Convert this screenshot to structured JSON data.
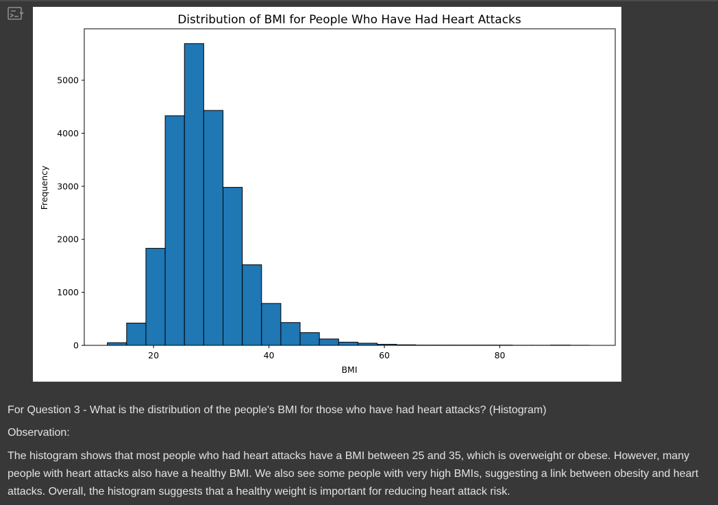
{
  "output_icon": "output-toggle-icon",
  "colors": {
    "background": "#383838",
    "bar_fill": "#1f77b4",
    "bar_edge": "#000000",
    "text": "#e3e3e3"
  },
  "chart_data": {
    "type": "bar",
    "title": "Distribution of BMI for People Who Have Had Heart Attacks",
    "xlabel": "BMI",
    "ylabel": "Frequency",
    "xlim": [
      8,
      100
    ],
    "ylim": [
      0,
      5970
    ],
    "grid": false,
    "legend": "none",
    "x_ticks": [
      20,
      40,
      60,
      80
    ],
    "y_ticks": [
      0,
      1000,
      2000,
      3000,
      4000,
      5000
    ],
    "bin_edges": [
      12.0,
      15.34,
      18.68,
      22.02,
      25.36,
      28.7,
      32.04,
      35.38,
      38.72,
      42.06,
      45.4,
      48.74,
      52.08,
      55.42,
      58.76,
      62.1,
      65.44,
      68.78,
      72.12,
      75.46,
      78.8,
      82.14,
      85.48,
      88.82,
      92.16,
      95.5
    ],
    "values": [
      50,
      420,
      1830,
      4330,
      5690,
      4430,
      2980,
      1520,
      790,
      430,
      240,
      120,
      60,
      40,
      20,
      10,
      5,
      5,
      5,
      5,
      5,
      2,
      2,
      5,
      2
    ]
  },
  "markdown": {
    "question": "For Question 3 - What is the distribution of the people's BMI for those who have had heart attacks? (Histogram)",
    "observation_label": "Observation:",
    "observation_text": "The histogram shows that most people who had heart attacks have a BMI between 25 and 35, which is overweight or obese. However, many people with heart attacks also have a healthy BMI. We also see some people with very high BMIs, suggesting a link between obesity and heart attacks. Overall, the histogram suggests that a healthy weight is important for reducing heart attack risk."
  }
}
